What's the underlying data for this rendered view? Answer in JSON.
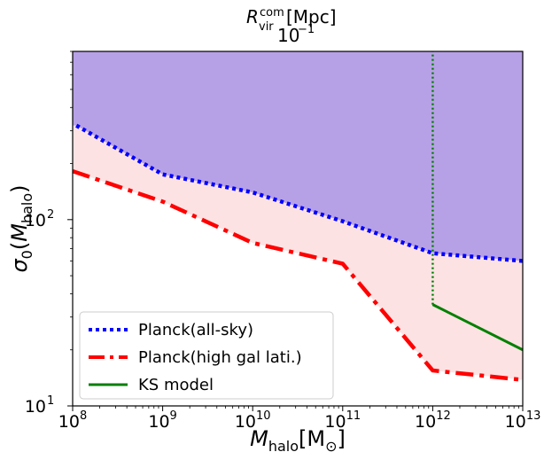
{
  "chart_data": {
    "type": "line",
    "title": "",
    "top_axis_label": "R_vir^com [Mpc]",
    "top_axis_tick": "10^-1",
    "xlabel": "M_halo[M_⊙]",
    "ylabel": "σ_0(M_halo)",
    "xscale": "log",
    "yscale": "log",
    "xlim": [
      100000000.0,
      10000000000000.0
    ],
    "ylim": [
      10,
      800
    ],
    "x_ticks": [
      {
        "value": 100000000.0,
        "base": "10",
        "exp": "8"
      },
      {
        "value": 1000000000.0,
        "base": "10",
        "exp": "9"
      },
      {
        "value": 10000000000.0,
        "base": "10",
        "exp": "10"
      },
      {
        "value": 100000000000.0,
        "base": "10",
        "exp": "11"
      },
      {
        "value": 1000000000000.0,
        "base": "10",
        "exp": "12"
      },
      {
        "value": 10000000000000.0,
        "base": "10",
        "exp": "13"
      }
    ],
    "y_ticks": [
      {
        "value": 10,
        "base": "10",
        "exp": "1"
      },
      {
        "value": 100,
        "base": "10",
        "exp": "2"
      }
    ],
    "legend_position": "lower-left",
    "series": [
      {
        "name": "Planck(all-sky)",
        "color": "#0000ff",
        "style": "dotted",
        "points": [
          [
            110000000.0,
            320
          ],
          [
            1000000000.0,
            175
          ],
          [
            10000000000.0,
            140
          ],
          [
            100000000000.0,
            98
          ],
          [
            1000000000000.0,
            66
          ],
          [
            10000000000000.0,
            60
          ]
        ]
      },
      {
        "name": "Planck(high gal lati.)",
        "color": "#ff0000",
        "style": "dashdot",
        "points": [
          [
            100000000.0,
            182
          ],
          [
            1000000000.0,
            125
          ],
          [
            10000000000.0,
            75
          ],
          [
            100000000000.0,
            58
          ],
          [
            1000000000000.0,
            15.5
          ],
          [
            10000000000000.0,
            13.8
          ]
        ]
      },
      {
        "name": "KS model",
        "color": "#008000",
        "style": "solid",
        "points": [
          [
            1000000000000.0,
            35
          ],
          [
            10000000000000.0,
            20
          ]
        ]
      }
    ],
    "vertical_line": {
      "x": 1000000000000.0,
      "y_from": 35,
      "y_to": 800,
      "color": "#008000",
      "style": "dotted"
    },
    "regions": [
      {
        "name": "excluded-all-sky",
        "color": "#b7a1e6",
        "bound": "above Planck(all-sky)"
      },
      {
        "name": "excluded-high-lat",
        "color": "#fde2e3",
        "bound": "between Planck(high gal lati.) and Planck(all-sky)"
      }
    ]
  }
}
